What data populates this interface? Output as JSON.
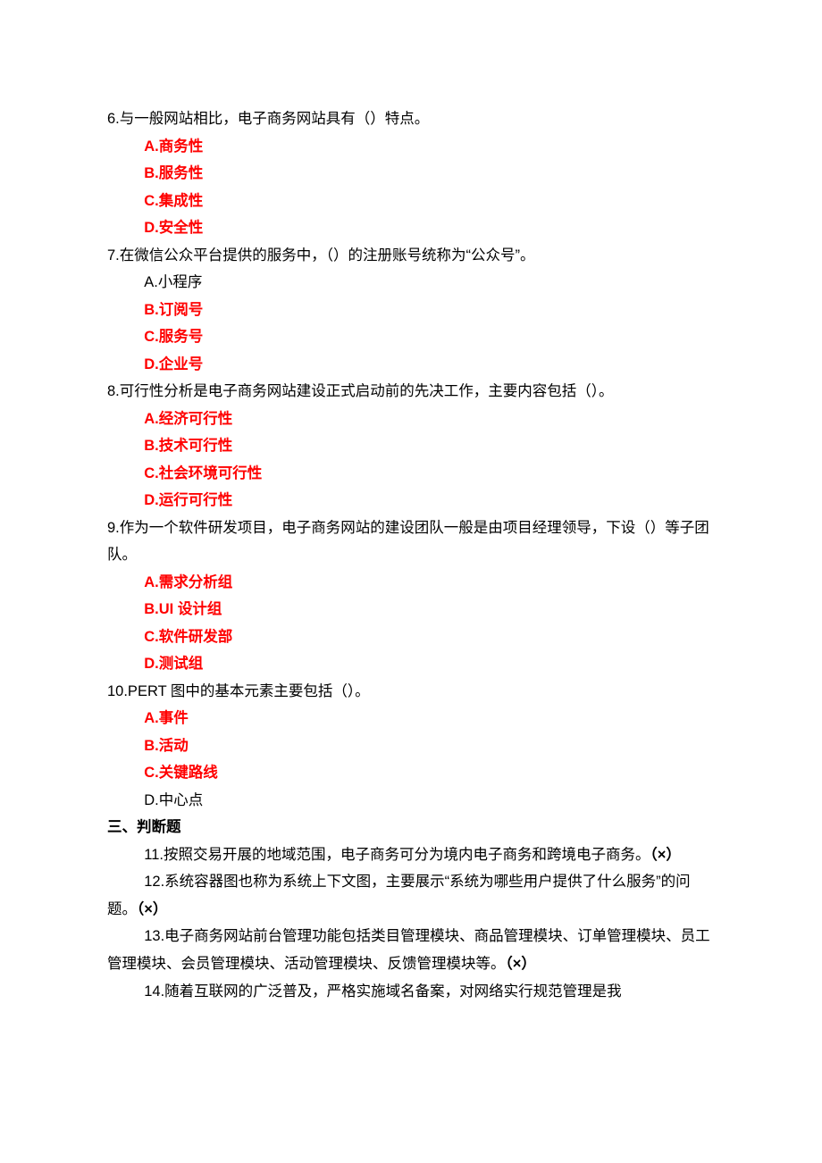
{
  "q6": {
    "stem": "6.与一般网站相比，电子商务网站具有（）特点。",
    "opts": [
      {
        "text": "A.商务性",
        "hl": true
      },
      {
        "text": "B.服务性",
        "hl": true
      },
      {
        "text": "C.集成性",
        "hl": true
      },
      {
        "text": "D.安全性",
        "hl": true
      }
    ]
  },
  "q7": {
    "stem": "7.在微信公众平台提供的服务中，（）的注册账号统称为“公众号”。",
    "opts": [
      {
        "text": "A.小程序",
        "hl": false
      },
      {
        "text": "B.订阅号",
        "hl": true
      },
      {
        "text": "C.服务号",
        "hl": true
      },
      {
        "text": "D.企业号",
        "hl": true
      }
    ]
  },
  "q8": {
    "stem": "8.可行性分析是电子商务网站建设正式启动前的先决工作，主要内容包括（）。",
    "opts": [
      {
        "text": "A.经济可行性",
        "hl": true
      },
      {
        "text": "B.技术可行性",
        "hl": true
      },
      {
        "text": "C.社会环境可行性",
        "hl": true
      },
      {
        "text": "D.运行可行性",
        "hl": true
      }
    ]
  },
  "q9": {
    "stem": "9.作为一个软件研发项目，电子商务网站的建设团队一般是由项目经理领导，下设（）等子团队。",
    "opts": [
      {
        "text": "A.需求分析组",
        "hl": true
      },
      {
        "text": "B.UI 设计组",
        "hl": true
      },
      {
        "text": "C.软件研发部",
        "hl": true
      },
      {
        "text": "D.测试组",
        "hl": true
      }
    ]
  },
  "q10": {
    "stem": "10.PERT 图中的基本元素主要包括（）。",
    "opts": [
      {
        "text": "A.事件",
        "hl": true
      },
      {
        "text": "B.活动",
        "hl": true
      },
      {
        "text": "C.关键路线",
        "hl": true
      },
      {
        "text": "D.中心点",
        "hl": false
      }
    ]
  },
  "section3": "三、判断题",
  "j11": {
    "text": "11.按照交易开展的地域范围，电子商务可分为境内电子商务和跨境电子商务。",
    "mark": "（×）"
  },
  "j12": {
    "text": "12.系统容器图也称为系统上下文图，主要展示“系统为哪些用户提供了什么服务”的问题。",
    "mark": "（×）"
  },
  "j13": {
    "text": "13.电子商务网站前台管理功能包括类目管理模块、商品管理模块、订单管理模块、员工管理模块、会员管理模块、活动管理模块、反馈管理模块等。",
    "mark": "（×）"
  },
  "j14": {
    "text": "14.随着互联网的广泛普及，严格实施域名备案，对网络实行规范管理是我"
  }
}
